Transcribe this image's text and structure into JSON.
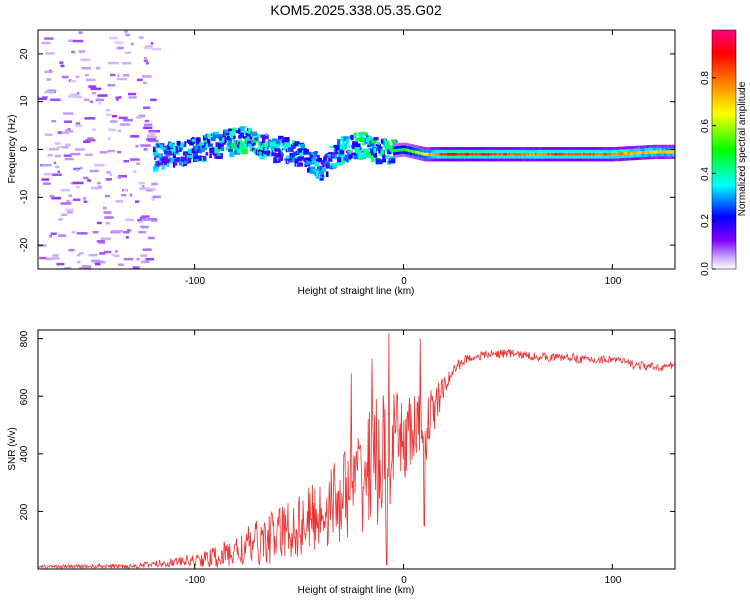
{
  "title": "KOM5.2025.338.05.35.G02",
  "chart_data": [
    {
      "type": "heatmap",
      "title": "KOM5.2025.338.05.35.G02",
      "xlabel": "Height of straight line (km)",
      "ylabel": "Frequency (Hz)",
      "xlim": [
        -175,
        130
      ],
      "ylim": [
        -25,
        25
      ],
      "x_ticks": [
        "-100",
        "0",
        "100"
      ],
      "y_ticks": [
        "-20",
        "-10",
        "0",
        "10",
        "20"
      ],
      "colorbar": {
        "label": "Normalized spectral amplitude",
        "range": [
          0,
          1
        ],
        "ticks": [
          "0.0",
          "0.2",
          "0.4",
          "0.6",
          "0.8"
        ],
        "colors": [
          "#ffffff",
          "#c8a6ff",
          "#8000ff",
          "#0000ff",
          "#00ffff",
          "#00ff00",
          "#ffff00",
          "#ff8000",
          "#ff0000",
          "#ff0080"
        ]
      },
      "ridge": {
        "x": [
          -120,
          -110,
          -100,
          -90,
          -80,
          -75,
          -70,
          -60,
          -50,
          -40,
          -30,
          -20,
          -10,
          0,
          10,
          20,
          40,
          60,
          80,
          100,
          120,
          130
        ],
        "freq": [
          -1.5,
          -1,
          0,
          1,
          2,
          2.5,
          1,
          0,
          -1,
          -4,
          0,
          1,
          -0.5,
          0,
          -1,
          -1,
          -1,
          -1,
          -1,
          -1,
          -0.5,
          -0.5
        ],
        "amplitude": [
          0.35,
          0.4,
          0.4,
          0.45,
          0.5,
          0.5,
          0.45,
          0.4,
          0.4,
          0.35,
          0.45,
          0.5,
          0.5,
          0.55,
          0.7,
          0.95,
          0.9,
          0.85,
          0.9,
          0.85,
          0.75,
          0.75
        ]
      },
      "noise_region": {
        "x_from": -175,
        "x_to": -120,
        "freq_range": [
          -25,
          25
        ],
        "amplitude": 0.05
      }
    },
    {
      "type": "line",
      "xlabel": "Height of straight line (km)",
      "ylabel": "SNR (v/v)",
      "xlim": [
        -175,
        130
      ],
      "ylim": [
        0,
        830
      ],
      "x_ticks": [
        "-100",
        "0",
        "100"
      ],
      "y_ticks": [
        "200",
        "400",
        "600",
        "800"
      ],
      "color": "#ee3333",
      "envelope": {
        "x": [
          -175,
          -130,
          -115,
          -100,
          -90,
          -80,
          -70,
          -60,
          -50,
          -40,
          -30,
          -20,
          -15,
          -10,
          -5,
          0,
          5,
          10,
          15,
          20,
          25,
          30,
          40,
          50,
          60,
          70,
          80,
          90,
          100,
          110,
          120,
          130
        ],
        "y": [
          8,
          10,
          20,
          30,
          40,
          60,
          90,
          120,
          150,
          190,
          250,
          320,
          360,
          380,
          420,
          450,
          480,
          480,
          560,
          640,
          700,
          730,
          745,
          750,
          740,
          735,
          735,
          725,
          730,
          710,
          700,
          705
        ]
      },
      "spread": {
        "x": [
          -175,
          -130,
          -100,
          -80,
          -60,
          -40,
          -25,
          -15,
          -10,
          -5,
          0,
          10,
          15,
          20,
          30,
          130
        ],
        "y": [
          6,
          8,
          20,
          60,
          100,
          130,
          170,
          220,
          240,
          200,
          150,
          130,
          80,
          30,
          15,
          15
        ]
      },
      "spikes": [
        {
          "x": -7,
          "y": 820
        },
        {
          "x": -8,
          "y": 15
        },
        {
          "x": 8,
          "y": 800
        },
        {
          "x": 10,
          "y": 150
        },
        {
          "x": -25,
          "y": 680
        },
        {
          "x": -15,
          "y": 730
        }
      ]
    }
  ]
}
